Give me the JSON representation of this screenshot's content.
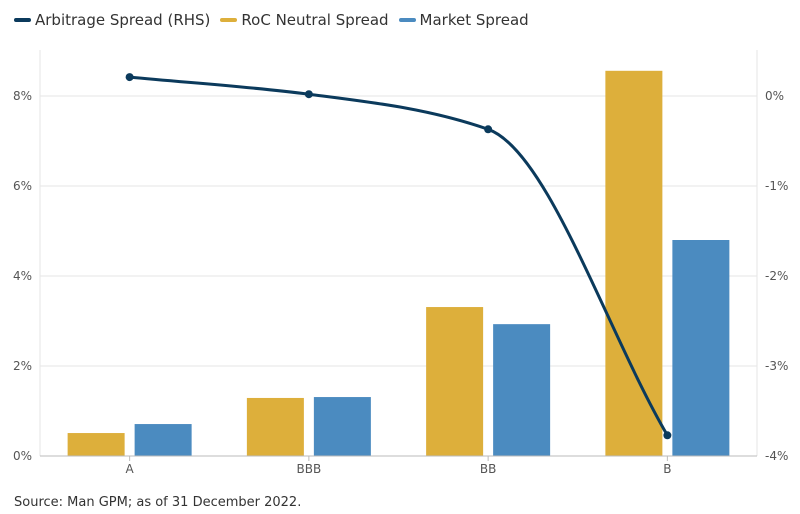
{
  "chart_data": {
    "type": "bar",
    "categories": [
      "A",
      "BBB",
      "BB",
      "B"
    ],
    "series": [
      {
        "name": "RoC Neutral Spread",
        "kind": "bar",
        "axis": "left",
        "color": "#ddaf3b",
        "values": [
          0.51,
          1.29,
          3.31,
          8.56
        ]
      },
      {
        "name": "Market Spread",
        "kind": "bar",
        "axis": "left",
        "color": "#4b8bc0",
        "values": [
          0.71,
          1.31,
          2.93,
          4.8
        ]
      },
      {
        "name": "Arbitrage Spread (RHS)",
        "kind": "line",
        "axis": "right",
        "color": "#0b3a5c",
        "values": [
          0.21,
          0.02,
          -0.37,
          -3.77
        ]
      }
    ],
    "legend_order": [
      2,
      0,
      1
    ],
    "left_axis": {
      "ylim": [
        0,
        9
      ],
      "ticks": [
        0,
        2,
        4,
        6,
        8
      ],
      "tick_labels": [
        "0%",
        "2%",
        "4%",
        "6%",
        "8%"
      ]
    },
    "right_axis": {
      "ylim": [
        -4,
        0.5
      ],
      "ticks": [
        0,
        -1,
        -2,
        -3,
        -4
      ],
      "tick_labels": [
        "0%",
        "-1%",
        "-2%",
        "-3%",
        "-4%"
      ]
    },
    "legend_placement": "top-left",
    "grid": true
  },
  "source": "Source: Man GPM; as of 31 December 2022."
}
